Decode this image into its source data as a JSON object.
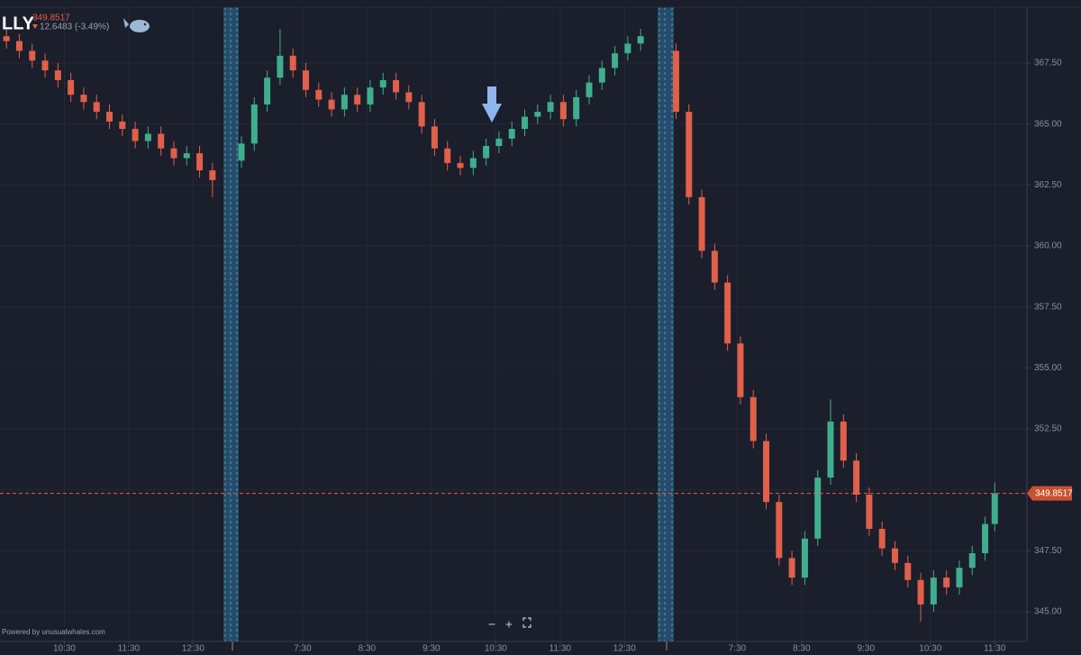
{
  "chart_data": {
    "type": "candlestick",
    "title": "LLY",
    "price": "349.8517",
    "change": "12.6483 (-3.49%)",
    "footer": "Powered by unusualwhales.com",
    "zoom_out": "−",
    "zoom_in": "+",
    "up_color": "#3fae8c",
    "down_color": "#e0604a",
    "grid": true,
    "last_price": {
      "value": 349.8517,
      "label": "349.8517"
    },
    "xlim": [
      0,
      15.95
    ],
    "xticks": [
      {
        "value": 1,
        "label": "10:30"
      },
      {
        "value": 2,
        "label": "11:30"
      },
      {
        "value": 3,
        "label": "12:30"
      },
      {
        "value": 4.7,
        "label": "7:30"
      },
      {
        "value": 5.7,
        "label": "8:30"
      },
      {
        "value": 6.7,
        "label": "9:30"
      },
      {
        "value": 7.7,
        "label": "10:30"
      },
      {
        "value": 8.7,
        "label": "11:30"
      },
      {
        "value": 9.7,
        "label": "12:30"
      },
      {
        "value": 11.45,
        "label": "7:30"
      },
      {
        "value": 12.45,
        "label": "8:30"
      },
      {
        "value": 13.45,
        "label": "9:30"
      },
      {
        "value": 14.45,
        "label": "10:30"
      },
      {
        "value": 15.45,
        "label": "11:30"
      }
    ],
    "ylim": [
      343.78,
      369.79
    ],
    "yticks": [
      {
        "value": 345,
        "label": "345.00"
      },
      {
        "value": 347.5,
        "label": "347.50"
      },
      {
        "value": 350,
        "label": "350.00"
      },
      {
        "value": 352.5,
        "label": "352.50"
      },
      {
        "value": 355,
        "label": "355.00"
      },
      {
        "value": 357.5,
        "label": "357.50"
      },
      {
        "value": 360,
        "label": "360.00"
      },
      {
        "value": 362.5,
        "label": "362.50"
      },
      {
        "value": 365,
        "label": "365.00"
      },
      {
        "value": 367.5,
        "label": "367.50"
      }
    ],
    "x": [
      0.1,
      0.3,
      0.5,
      0.7,
      0.9,
      1.1,
      1.3,
      1.5,
      1.7,
      1.9,
      2.1,
      2.3,
      2.5,
      2.7,
      2.9,
      3.1,
      3.3,
      3.75,
      3.95,
      4.15,
      4.35,
      4.55,
      4.75,
      4.95,
      5.15,
      5.35,
      5.55,
      5.75,
      5.95,
      6.15,
      6.35,
      6.55,
      6.75,
      6.95,
      7.15,
      7.35,
      7.55,
      7.75,
      7.95,
      8.15,
      8.35,
      8.55,
      8.75,
      8.95,
      9.15,
      9.35,
      9.55,
      9.75,
      9.95,
      10.5,
      10.7,
      10.9,
      11.1,
      11.3,
      11.5,
      11.7,
      11.9,
      12.1,
      12.3,
      12.5,
      12.7,
      12.9,
      13.1,
      13.3,
      13.5,
      13.7,
      13.9,
      14.1,
      14.3,
      14.5,
      14.7,
      14.9,
      15.1,
      15.3,
      15.45
    ],
    "open": [
      368.6,
      368.4,
      368.0,
      367.6,
      367.2,
      366.8,
      366.2,
      365.9,
      365.5,
      365.1,
      364.8,
      364.3,
      364.6,
      364.0,
      363.6,
      363.8,
      363.1,
      363.5,
      364.2,
      365.8,
      366.9,
      367.8,
      367.2,
      366.4,
      366.0,
      365.6,
      366.2,
      365.8,
      366.5,
      366.8,
      366.3,
      365.9,
      364.9,
      364.0,
      363.4,
      363.2,
      363.6,
      364.1,
      364.4,
      364.8,
      365.3,
      365.5,
      365.9,
      365.2,
      366.1,
      366.7,
      367.3,
      367.9,
      368.3,
      368.0,
      365.5,
      362.0,
      359.8,
      358.5,
      356.0,
      353.8,
      352.0,
      349.5,
      347.2,
      346.4,
      348.0,
      350.5,
      352.8,
      351.2,
      349.8,
      348.4,
      347.6,
      347.0,
      346.3,
      345.3,
      346.4,
      346.0,
      346.8,
      347.4,
      348.6
    ],
    "high": [
      368.9,
      368.7,
      368.3,
      367.9,
      367.5,
      367.1,
      366.5,
      366.2,
      365.8,
      365.4,
      365.1,
      364.9,
      364.9,
      364.3,
      364.1,
      364.1,
      363.4,
      364.5,
      366.1,
      367.2,
      368.9,
      368.1,
      367.5,
      366.7,
      366.3,
      366.5,
      366.5,
      366.8,
      367.1,
      367.1,
      366.6,
      366.2,
      365.2,
      364.3,
      363.7,
      363.9,
      364.4,
      364.7,
      365.1,
      365.6,
      365.8,
      366.2,
      366.2,
      366.4,
      367.0,
      367.6,
      368.2,
      368.6,
      368.9,
      368.3,
      365.8,
      362.3,
      360.1,
      358.8,
      356.3,
      354.1,
      352.3,
      349.8,
      347.5,
      348.3,
      350.8,
      353.7,
      353.1,
      351.5,
      350.1,
      348.7,
      347.9,
      347.3,
      346.6,
      346.7,
      346.7,
      347.1,
      347.7,
      348.9,
      350.3
    ],
    "low": [
      368.1,
      367.7,
      367.3,
      366.9,
      366.5,
      365.9,
      365.6,
      365.2,
      364.8,
      364.5,
      364.0,
      364.0,
      363.7,
      363.3,
      363.3,
      362.8,
      362.0,
      363.2,
      363.9,
      365.5,
      366.6,
      366.9,
      366.1,
      365.7,
      365.3,
      365.3,
      365.5,
      365.5,
      366.2,
      366.0,
      365.6,
      364.6,
      363.7,
      363.1,
      362.9,
      362.9,
      363.3,
      363.8,
      364.1,
      364.5,
      365.0,
      365.2,
      364.9,
      364.9,
      365.8,
      366.4,
      367.0,
      367.6,
      368.0,
      365.2,
      361.7,
      359.5,
      358.2,
      355.7,
      353.5,
      351.7,
      349.2,
      346.9,
      346.1,
      346.1,
      347.7,
      350.2,
      350.9,
      349.5,
      348.1,
      347.3,
      346.7,
      346.0,
      344.6,
      345.0,
      345.7,
      345.7,
      346.5,
      347.1,
      348.3
    ],
    "close": [
      368.4,
      368.0,
      367.6,
      367.2,
      366.8,
      366.2,
      365.9,
      365.5,
      365.1,
      364.8,
      364.3,
      364.6,
      364.0,
      363.6,
      363.8,
      363.1,
      362.7,
      364.2,
      365.8,
      366.9,
      367.8,
      367.2,
      366.4,
      366.0,
      365.6,
      366.2,
      365.8,
      366.5,
      366.8,
      366.3,
      365.9,
      364.9,
      364.0,
      363.4,
      363.2,
      363.6,
      364.1,
      364.4,
      364.8,
      365.3,
      365.5,
      365.9,
      365.2,
      366.1,
      366.7,
      367.3,
      367.9,
      368.3,
      368.6,
      365.5,
      362.0,
      359.8,
      358.5,
      356.0,
      353.8,
      352.0,
      349.5,
      347.2,
      346.4,
      348.0,
      350.5,
      352.8,
      351.2,
      349.8,
      348.4,
      347.6,
      347.0,
      346.3,
      345.3,
      346.4,
      346.0,
      346.8,
      347.4,
      348.6,
      349.8517
    ]
  }
}
